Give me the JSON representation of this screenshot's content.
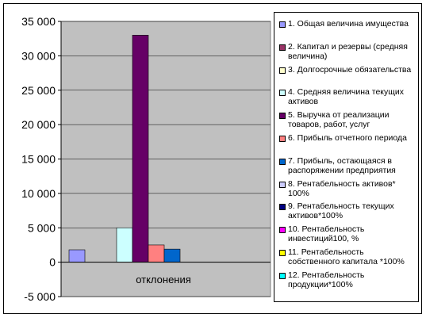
{
  "chart_data": {
    "type": "bar",
    "categories": [
      "отклонения"
    ],
    "ylim": [
      -5000,
      35000
    ],
    "yticks": [
      -5000,
      0,
      5000,
      10000,
      15000,
      20000,
      25000,
      30000,
      35000
    ],
    "ytick_labels": [
      "-5 000",
      "0",
      "5 000",
      "10 000",
      "15 000",
      "20 000",
      "25 000",
      "30 000",
      "35 000"
    ],
    "grid": true,
    "plot_background": "#c0c0c0",
    "legend_position": "right",
    "series": [
      {
        "name": "1. Общая величина имущества",
        "values": [
          1800
        ],
        "color": "#9999ff"
      },
      {
        "name": "2. Капитал и резервы (средняя величина)",
        "values": [
          0
        ],
        "color": "#993366"
      },
      {
        "name": "3. Долгосрочные обязательства",
        "values": [
          0
        ],
        "color": "#ffffcc"
      },
      {
        "name": "4. Средняя величина текущих активов",
        "values": [
          5000
        ],
        "color": "#ccffff"
      },
      {
        "name": "5. Выручка от реализации товаров, работ, услуг",
        "values": [
          33000
        ],
        "color": "#660066"
      },
      {
        "name": "6. Прибыль отчетного периода",
        "values": [
          2500
        ],
        "color": "#ff8080"
      },
      {
        "name": "7. Прибыль, остающаяся в распоряжении предприятия",
        "values": [
          1900
        ],
        "color": "#0066cc"
      },
      {
        "name": "8. Рентабельность активов* 100%",
        "values": [
          0
        ],
        "color": "#ccccff"
      },
      {
        "name": "9. Рентабельность текущих активов*100%",
        "values": [
          0
        ],
        "color": "#000080"
      },
      {
        "name": "10. Рентабельность инвестиций100, %",
        "values": [
          0
        ],
        "color": "#ff00ff"
      },
      {
        "name": "11. Рентабельность собственного капитала *100%",
        "values": [
          0
        ],
        "color": "#ffff00"
      },
      {
        "name": "12. Рентабельность продукции*100%",
        "values": [
          0
        ],
        "color": "#00ffff"
      }
    ]
  }
}
